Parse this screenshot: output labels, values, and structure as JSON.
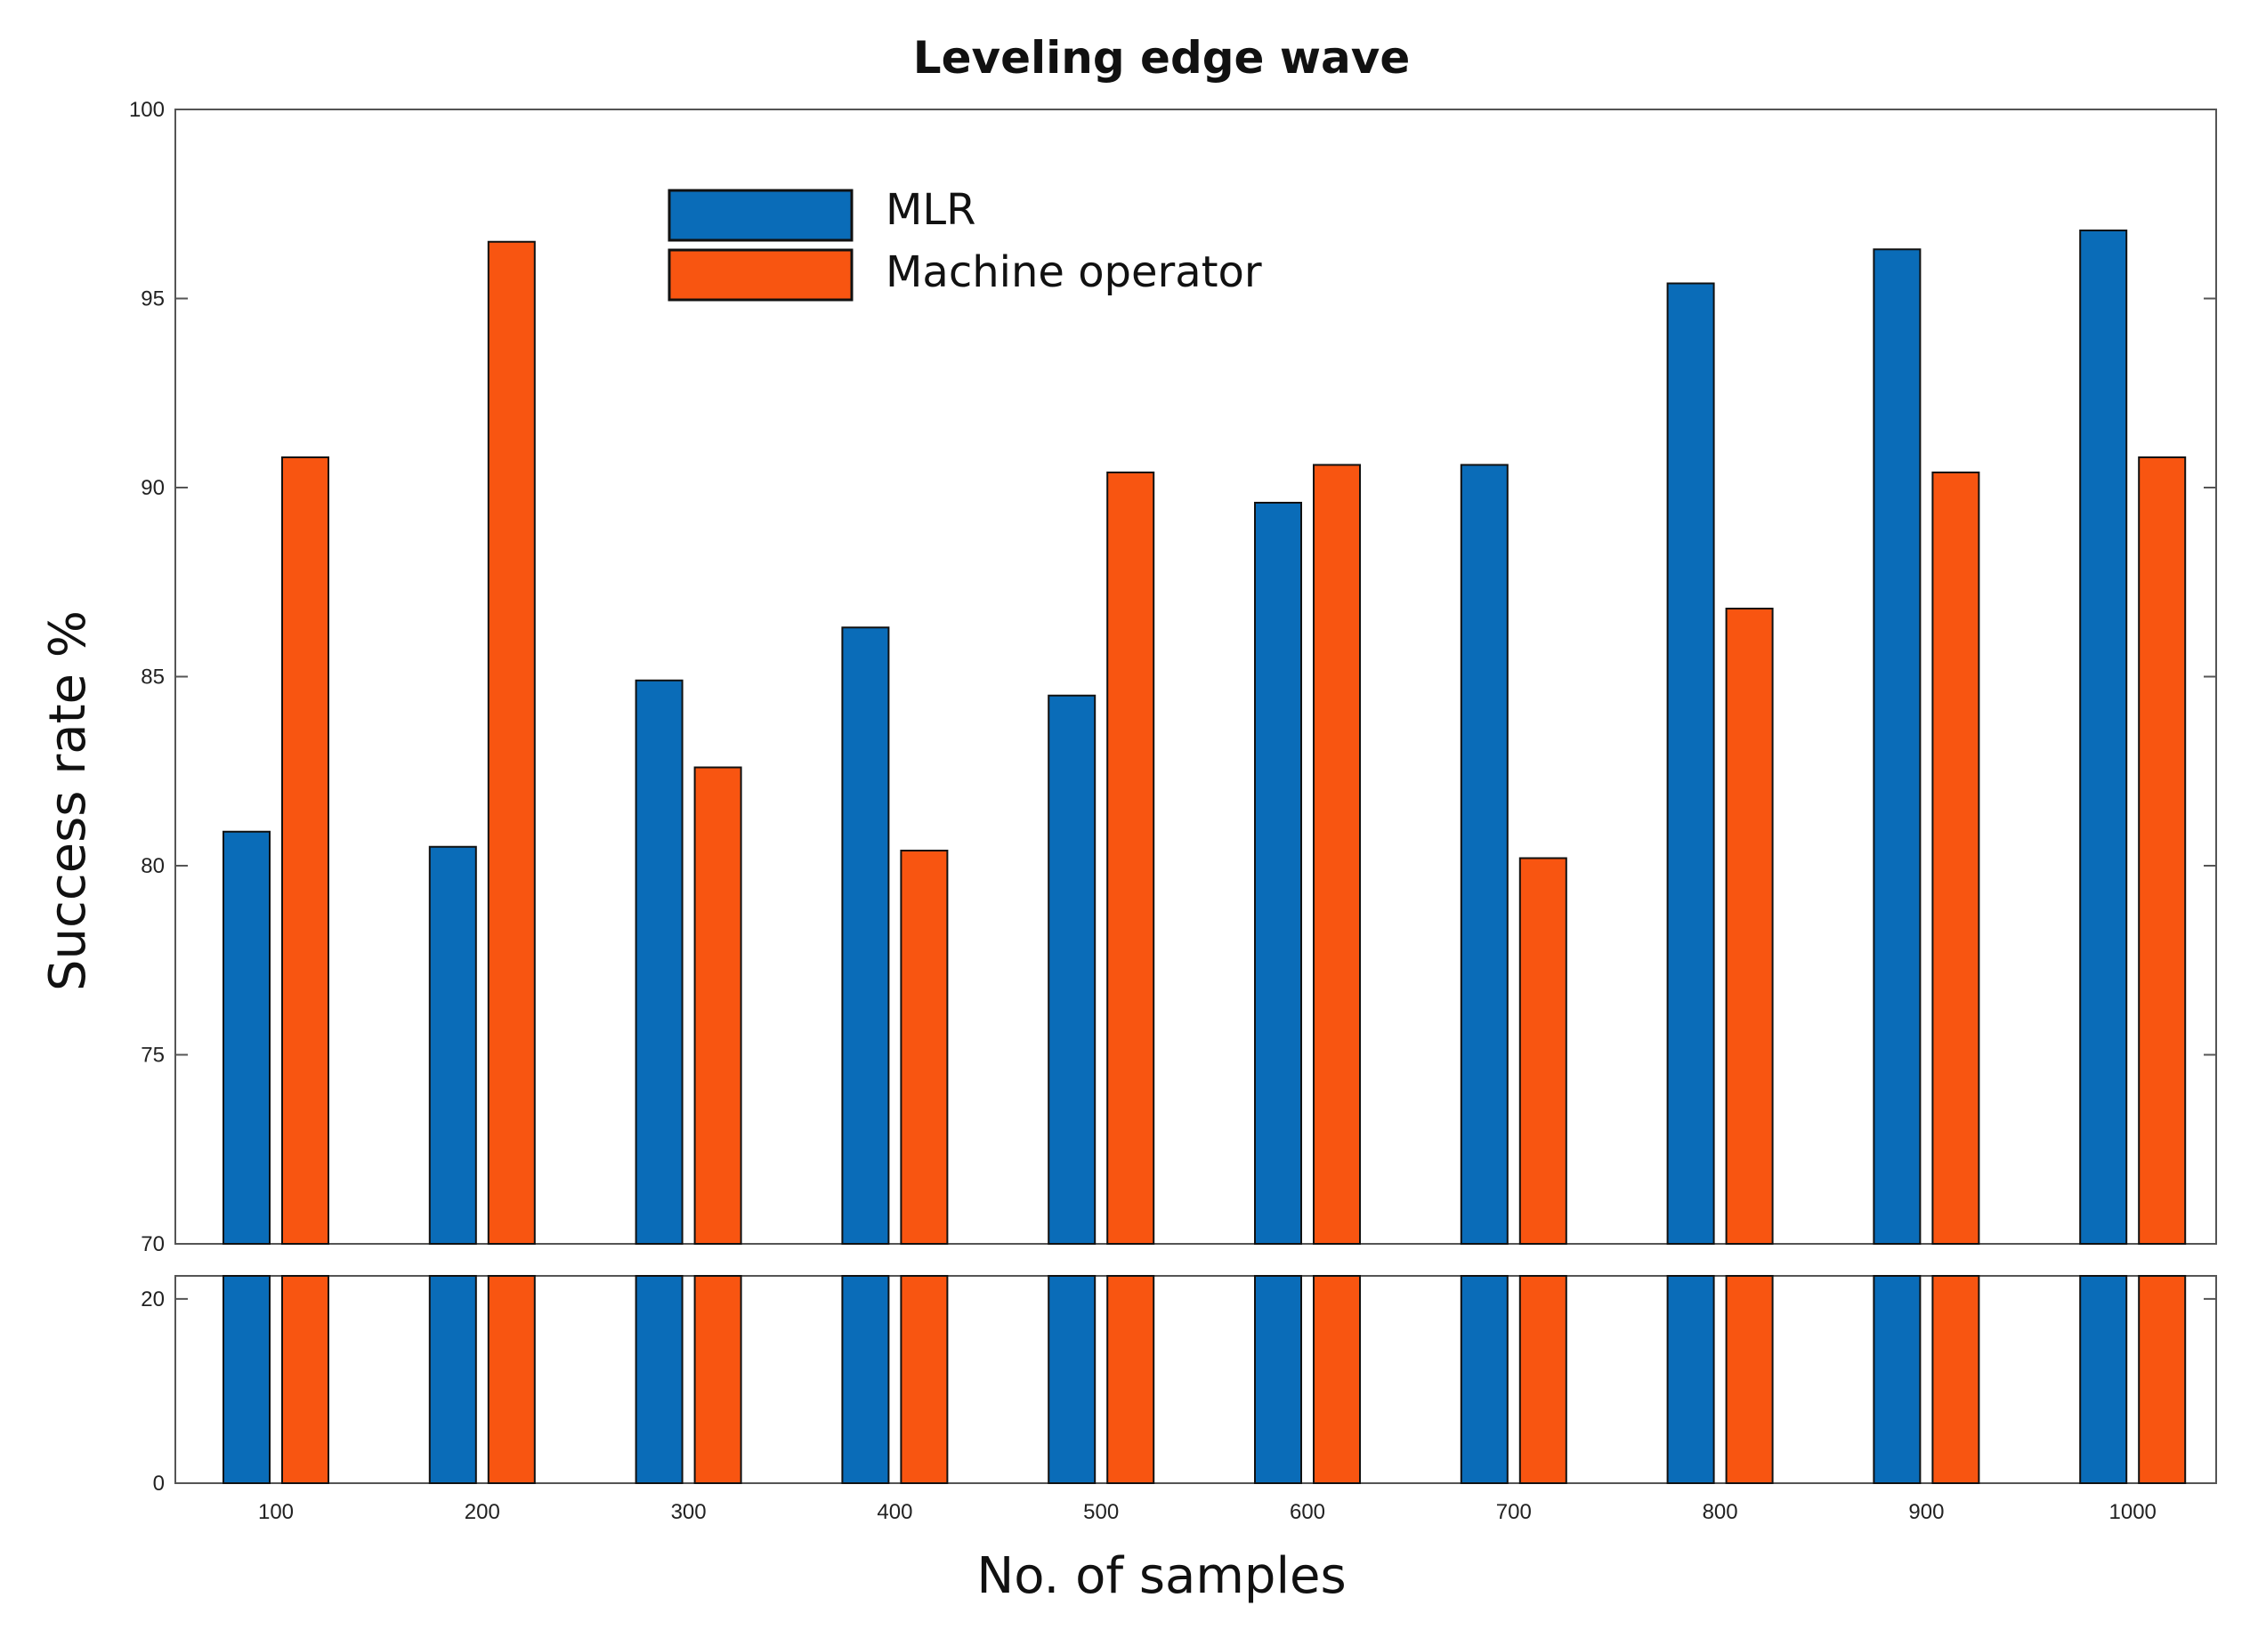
{
  "chart_data": {
    "type": "bar",
    "title": "Leveling edge wave",
    "xlabel": "No. of samples",
    "ylabel": "Success rate %",
    "categories": [
      "100",
      "200",
      "300",
      "400",
      "500",
      "600",
      "700",
      "800",
      "900",
      "1000"
    ],
    "series": [
      {
        "name": "MLR",
        "color": "#0a6cb8",
        "values": [
          80.9,
          80.5,
          84.9,
          86.3,
          84.5,
          89.6,
          90.6,
          95.4,
          96.3,
          96.8
        ]
      },
      {
        "name": "Machine operator",
        "color": "#f85511",
        "values": [
          90.8,
          96.5,
          82.6,
          80.4,
          90.4,
          90.6,
          80.2,
          86.8,
          90.4,
          90.8
        ]
      }
    ],
    "y_axis_broken": true,
    "upper_panel": {
      "ylim": [
        70,
        100
      ],
      "yticks": [
        "70",
        "75",
        "80",
        "85",
        "90",
        "95",
        "100"
      ]
    },
    "lower_panel": {
      "ylim": [
        0,
        22.5
      ],
      "yticks": [
        "0",
        "20"
      ]
    },
    "legend_position": "top-left inside",
    "grid": false
  }
}
